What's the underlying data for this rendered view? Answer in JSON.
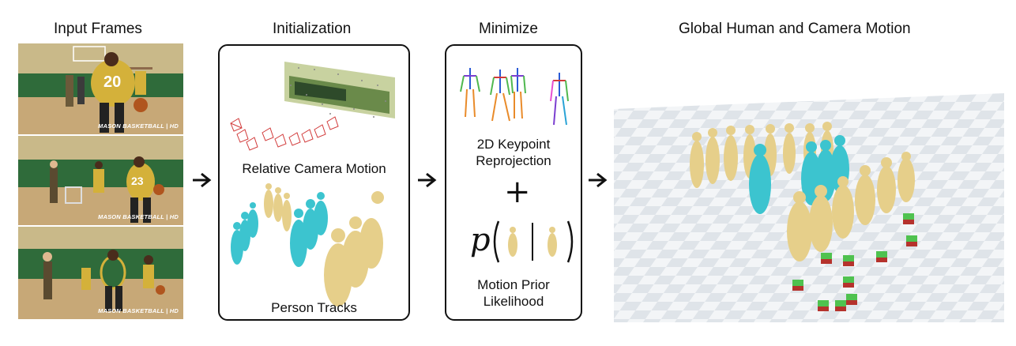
{
  "headers": {
    "input_frames": "Input Frames",
    "initialization": "Initialization",
    "minimize": "Minimize",
    "global_motion": "Global Human and Camera Motion"
  },
  "frames": [
    {
      "jersey": "20",
      "logo": "MASON BASKETBALL | HD"
    },
    {
      "jersey": "23",
      "logo": "MASON BASKETBALL | HD"
    },
    {
      "jersey": "",
      "logo": "MASON BASKETBALL | HD"
    }
  ],
  "initialization": {
    "camera_label": "Relative Camera Motion",
    "tracks_label": "Person Tracks"
  },
  "minimize": {
    "keypoint_label_line1": "2D Keypoint",
    "keypoint_label_line2": "Reprojection",
    "plus_symbol": "+",
    "prior_symbol": "p",
    "prior_label_line1": "Motion Prior",
    "prior_label_line2": "Likelihood"
  },
  "colors": {
    "court_green": "#2f6b3a",
    "jersey_gold": "#d4b13a",
    "human_tan": "#e6cf8a",
    "human_cyan": "#3cc4cf",
    "camera_red": "#d23a3a",
    "cube_green": "#4fc24f",
    "cube_red": "#b5322c",
    "floor_light": "#f3f5f7",
    "floor_dark": "#dfe4e9"
  }
}
